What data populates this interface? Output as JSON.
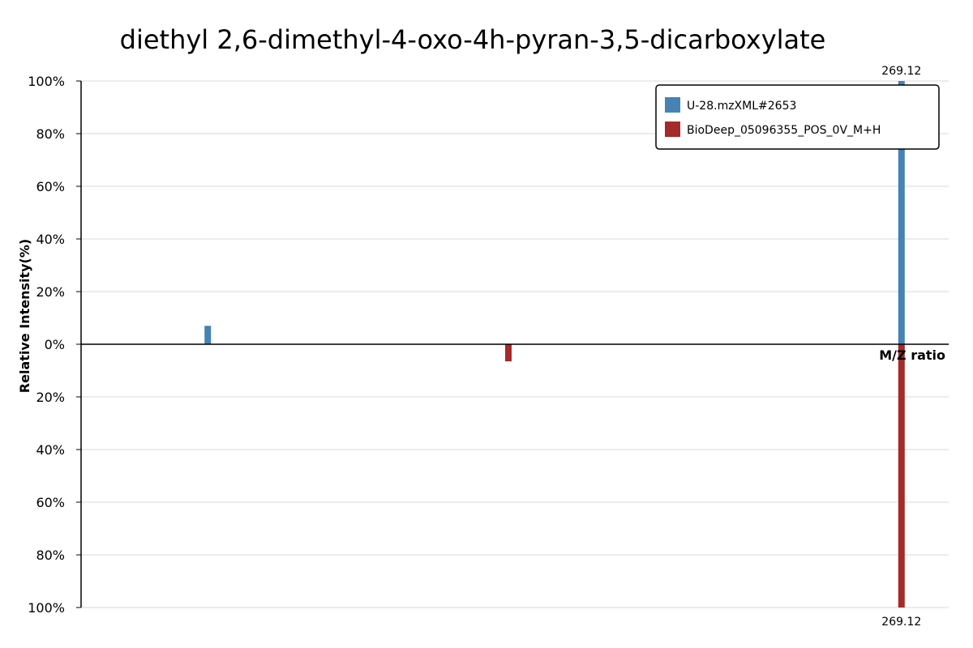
{
  "chart_data": {
    "type": "bar",
    "subtype": "mirror-mass-spectrum",
    "title": "diethyl 2,6-dimethyl-4-oxo-4h-pyran-3,5-dicarboxylate",
    "xlabel": "M/Z ratio",
    "ylabel": "Relative Intensity(%)",
    "xlim": [
      80,
      280
    ],
    "ylim": [
      -100,
      100
    ],
    "grid": true,
    "legend_position": "top-right",
    "yticks": [
      {
        "value": 100,
        "label": "100%"
      },
      {
        "value": 80,
        "label": "80%"
      },
      {
        "value": 60,
        "label": "60%"
      },
      {
        "value": 40,
        "label": "40%"
      },
      {
        "value": 20,
        "label": "20%"
      },
      {
        "value": 0,
        "label": "0%"
      },
      {
        "value": -20,
        "label": "20%"
      },
      {
        "value": -40,
        "label": "40%"
      },
      {
        "value": -60,
        "label": "60%"
      },
      {
        "value": -80,
        "label": "80%"
      },
      {
        "value": -100,
        "label": "100%"
      }
    ],
    "series": [
      {
        "name": "U-28.mzXML#2653",
        "color": "#4682b4",
        "direction": "up",
        "peaks": [
          {
            "mz": 109.2,
            "intensity": 7
          },
          {
            "mz": 269.12,
            "intensity": 100,
            "label": "269.12"
          }
        ]
      },
      {
        "name": "BioDeep_05096355_POS_0V_M+H",
        "color": "#a52a2a",
        "direction": "down",
        "peaks": [
          {
            "mz": 178.5,
            "intensity": 6.5
          },
          {
            "mz": 269.12,
            "intensity": 100,
            "label": "269.12"
          }
        ]
      }
    ]
  }
}
